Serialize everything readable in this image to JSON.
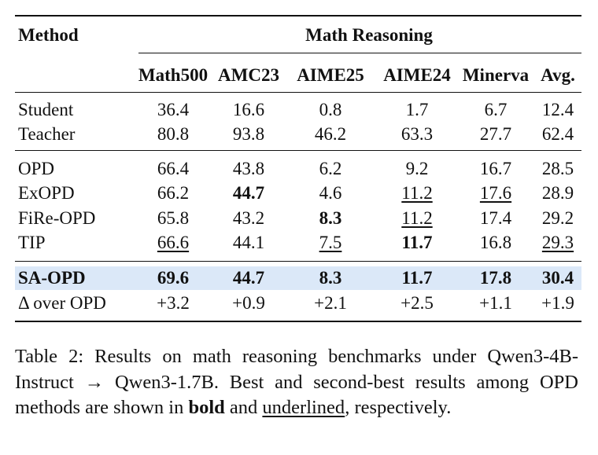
{
  "table": {
    "method_header": "Method",
    "group_header": "Math Reasoning",
    "columns": [
      "Math500",
      "AMC23",
      "AIME25",
      "AIME24",
      "Minerva",
      "Avg."
    ],
    "reference_rows": [
      {
        "method": "Student",
        "values": [
          "36.4",
          "16.6",
          "0.8",
          "1.7",
          "6.7",
          "12.4"
        ],
        "bold": [],
        "underline": []
      },
      {
        "method": "Teacher",
        "values": [
          "80.8",
          "93.8",
          "46.2",
          "63.3",
          "27.7",
          "62.4"
        ],
        "bold": [],
        "underline": []
      }
    ],
    "baseline_rows": [
      {
        "method": "OPD",
        "values": [
          "66.4",
          "43.8",
          "6.2",
          "9.2",
          "16.7",
          "28.5"
        ],
        "bold": [],
        "underline": []
      },
      {
        "method": "ExOPD",
        "values": [
          "66.2",
          "44.7",
          "4.6",
          "11.2",
          "17.6",
          "28.9"
        ],
        "bold": [
          1
        ],
        "underline": [
          3,
          4
        ]
      },
      {
        "method": "FiRe-OPD",
        "values": [
          "65.8",
          "43.2",
          "8.3",
          "11.2",
          "17.4",
          "29.2"
        ],
        "bold": [
          2
        ],
        "underline": [
          3
        ]
      },
      {
        "method": "TIP",
        "values": [
          "66.6",
          "44.1",
          "7.5",
          "11.7",
          "16.8",
          "29.3"
        ],
        "bold": [
          3
        ],
        "underline": [
          0,
          2,
          5
        ]
      }
    ],
    "ours_row": {
      "method": "SA-OPD",
      "values": [
        "69.6",
        "44.7",
        "8.3",
        "11.7",
        "17.8",
        "30.4"
      ]
    },
    "delta_row": {
      "method": "Δ over OPD",
      "values": [
        "+3.2",
        "+0.9",
        "+2.1",
        "+2.5",
        "+1.1",
        "+1.9"
      ]
    },
    "highlight_color": "#dbe8f8"
  },
  "caption": {
    "label": "Table 2:",
    "text_before_bold": " Results on math reasoning benchmarks under Qwen3-4B-Instruct → Qwen3-1.7B. Best and second-best results among OPD methods are shown in ",
    "bold_word": "bold",
    "text_between": " and ",
    "underlined_word": "underlined",
    "text_after": ", respectively."
  }
}
